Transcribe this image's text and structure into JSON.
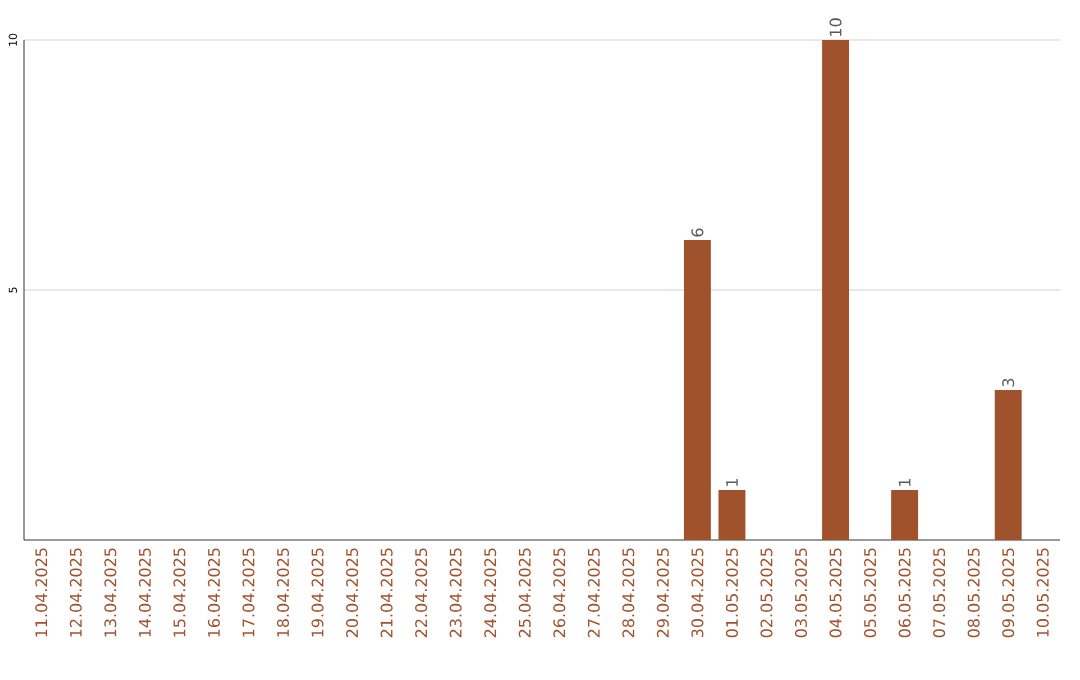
{
  "chart_data": {
    "type": "bar",
    "categories": [
      "11.04.2025",
      "12.04.2025",
      "13.04.2025",
      "14.04.2025",
      "15.04.2025",
      "16.04.2025",
      "17.04.2025",
      "18.04.2025",
      "19.04.2025",
      "20.04.2025",
      "21.04.2025",
      "22.04.2025",
      "23.04.2025",
      "24.04.2025",
      "25.04.2025",
      "26.04.2025",
      "27.04.2025",
      "28.04.2025",
      "29.04.2025",
      "30.04.2025",
      "01.05.2025",
      "02.05.2025",
      "03.05.2025",
      "04.05.2025",
      "05.05.2025",
      "06.05.2025",
      "07.05.2025",
      "08.05.2025",
      "09.05.2025",
      "10.05.2025"
    ],
    "values": [
      0,
      0,
      0,
      0,
      0,
      0,
      0,
      0,
      0,
      0,
      0,
      0,
      0,
      0,
      0,
      0,
      0,
      0,
      0,
      6,
      1,
      0,
      0,
      10,
      0,
      1,
      0,
      0,
      3,
      0
    ],
    "value_labels": [
      null,
      null,
      null,
      null,
      null,
      null,
      null,
      null,
      null,
      null,
      null,
      null,
      null,
      null,
      null,
      null,
      null,
      null,
      null,
      "6",
      "1",
      null,
      null,
      "10",
      null,
      "1",
      null,
      null,
      "3",
      null
    ],
    "color": "#a0522d",
    "ylim": [
      0,
      10
    ],
    "yticks": [
      5,
      10
    ],
    "grid": "y"
  }
}
